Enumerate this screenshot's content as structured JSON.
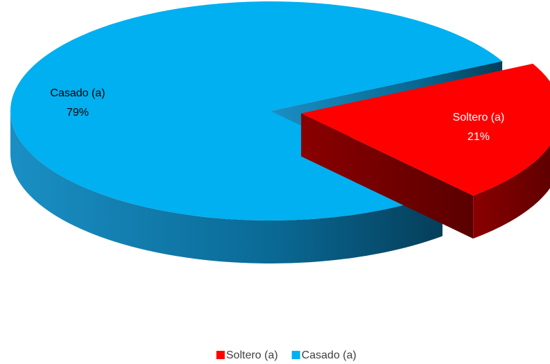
{
  "chart_data": {
    "type": "pie",
    "categories": [
      "Soltero (a)",
      "Casado (a)"
    ],
    "values": [
      21,
      79
    ],
    "value_labels": [
      "21%",
      "79%"
    ],
    "colors": [
      "#ff0000",
      "#00b0f0"
    ],
    "legend": "bottom"
  }
}
